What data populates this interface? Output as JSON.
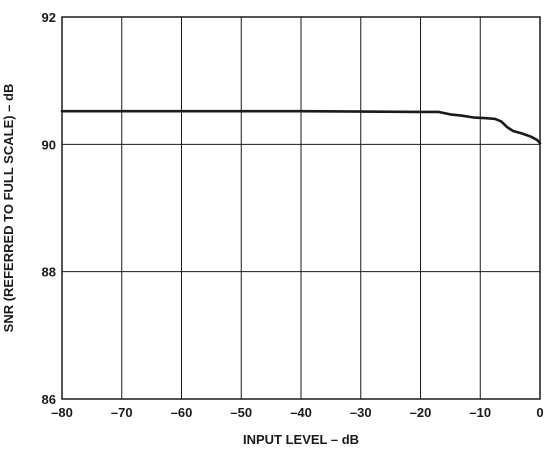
{
  "chart_data": {
    "type": "line",
    "title": "",
    "xlabel": "INPUT LEVEL – dB",
    "ylabel": "SNR (REFERRED TO FULL  SCALE) – dB",
    "xlim": [
      -80,
      0
    ],
    "ylim": [
      86,
      92
    ],
    "xticks": [
      -80,
      -70,
      -60,
      -50,
      -40,
      -30,
      -20,
      -10,
      0
    ],
    "yticks": [
      86,
      88,
      90,
      92
    ],
    "xtick_labels": [
      "–80",
      "–70",
      "–60",
      "–50",
      "–40",
      "–30",
      "–20",
      "–10",
      "0"
    ],
    "ytick_labels": [
      "86",
      "88",
      "90",
      "92"
    ],
    "grid": true,
    "series": [
      {
        "x": [
          -80,
          -60,
          -40,
          -20,
          -17,
          -15,
          -13,
          -11,
          -9,
          -7.5,
          -6.5,
          -5.5,
          -4.5,
          -3,
          -1.5,
          -0.5,
          0
        ],
        "y": [
          90.52,
          90.52,
          90.52,
          90.51,
          90.51,
          90.47,
          90.45,
          90.42,
          90.41,
          90.4,
          90.36,
          90.27,
          90.21,
          90.17,
          90.12,
          90.07,
          90.02
        ]
      }
    ],
    "line_color": "#1a1a1a"
  }
}
